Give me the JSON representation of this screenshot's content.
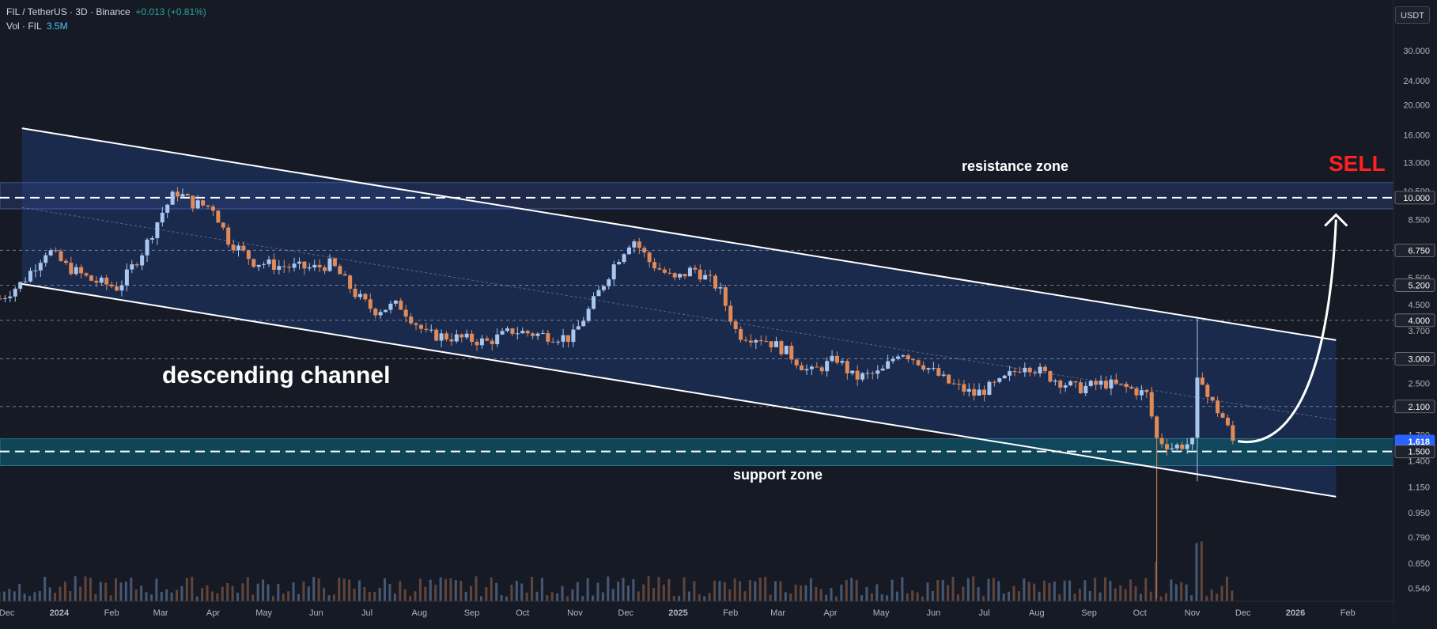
{
  "header": {
    "symbol_line": "FIL / TetherUS · 3D · Binance",
    "change": "+0.013 (+0.81%)",
    "volume_label": "Vol · FIL",
    "volume_value": "3.5M"
  },
  "currency_badge": "USDT",
  "colors": {
    "background": "#161a25",
    "up_candle": "#a9c6ef",
    "down_candle": "#e08a5a",
    "channel_fill": "#1b2e55",
    "support_fill": "#0f4a5e",
    "text": "#d1d4dc",
    "sell": "#ff2020"
  },
  "chart_data": {
    "type": "candlestick",
    "title": "FIL / TetherUS · 3D · Binance",
    "y_scale": "log",
    "ylim": [
      0.5,
      36
    ],
    "y_ticks": [
      "30.000",
      "24.000",
      "20.000",
      "16.000",
      "13.000",
      "10.500",
      "8.500",
      "6.750",
      "5.500",
      "4.500",
      "3.700",
      "3.000",
      "2.500",
      "2.100",
      "1.700",
      "1.400",
      "1.150",
      "0.950",
      "0.790",
      "0.650",
      "0.540"
    ],
    "x_ticks": [
      "Dec",
      "2024",
      "Feb",
      "Mar",
      "Apr",
      "May",
      "Jun",
      "Jul",
      "Aug",
      "Sep",
      "Oct",
      "Nov",
      "Dec",
      "2025",
      "Feb",
      "Mar",
      "Apr",
      "May",
      "Jun",
      "Jul",
      "Aug",
      "Sep",
      "Oct",
      "Nov",
      "Dec",
      "2026",
      "Feb"
    ],
    "x_range": [
      "2023-11-27",
      "2026-02-28"
    ],
    "price_labels": [
      {
        "value": 10.0,
        "text": "10.000",
        "style": "dark"
      },
      {
        "value": 6.75,
        "text": "6.750",
        "style": "dark"
      },
      {
        "value": 5.2,
        "text": "5.200",
        "style": "dark"
      },
      {
        "value": 4.0,
        "text": "4.000",
        "style": "dark"
      },
      {
        "value": 3.0,
        "text": "3.000",
        "style": "dark"
      },
      {
        "value": 2.1,
        "text": "2.100",
        "style": "dark"
      },
      {
        "value": 1.618,
        "text": "1.618",
        "style": "current"
      },
      {
        "value": 1.5,
        "text": "1.500",
        "style": "dark"
      }
    ],
    "close_points": [
      [
        "2023-11-27",
        4.7
      ],
      [
        "2023-12-10",
        5.3
      ],
      [
        "2023-12-25",
        6.8
      ],
      [
        "2024-01-05",
        6.0
      ],
      [
        "2024-01-20",
        5.4
      ],
      [
        "2024-02-05",
        5.1
      ],
      [
        "2024-02-20",
        6.8
      ],
      [
        "2024-03-01",
        8.8
      ],
      [
        "2024-03-10",
        10.5
      ],
      [
        "2024-03-20",
        9.6
      ],
      [
        "2024-04-01",
        9.3
      ],
      [
        "2024-04-10",
        7.3
      ],
      [
        "2024-04-25",
        6.2
      ],
      [
        "2024-05-10",
        6.0
      ],
      [
        "2024-05-30",
        5.9
      ],
      [
        "2024-06-10",
        6.1
      ],
      [
        "2024-06-25",
        4.8
      ],
      [
        "2024-07-05",
        4.3
      ],
      [
        "2024-07-20",
        4.5
      ],
      [
        "2024-08-05",
        3.6
      ],
      [
        "2024-08-25",
        3.5
      ],
      [
        "2024-09-10",
        3.4
      ],
      [
        "2024-09-25",
        3.7
      ],
      [
        "2024-10-10",
        3.6
      ],
      [
        "2024-10-30",
        3.5
      ],
      [
        "2024-11-10",
        4.4
      ],
      [
        "2024-11-25",
        6.2
      ],
      [
        "2024-12-05",
        7.4
      ],
      [
        "2024-12-15",
        6.2
      ],
      [
        "2024-12-30",
        5.4
      ],
      [
        "2025-01-10",
        5.9
      ],
      [
        "2025-01-25",
        5.1
      ],
      [
        "2025-02-05",
        3.6
      ],
      [
        "2025-02-20",
        3.5
      ],
      [
        "2025-03-05",
        3.2
      ],
      [
        "2025-03-20",
        2.7
      ],
      [
        "2025-04-05",
        3.0
      ],
      [
        "2025-04-15",
        2.6
      ],
      [
        "2025-05-01",
        2.7
      ],
      [
        "2025-05-12",
        3.2
      ],
      [
        "2025-05-25",
        2.9
      ],
      [
        "2025-06-10",
        2.5
      ],
      [
        "2025-06-25",
        2.3
      ],
      [
        "2025-07-10",
        2.5
      ],
      [
        "2025-07-25",
        2.9
      ],
      [
        "2025-08-10",
        2.6
      ],
      [
        "2025-08-25",
        2.4
      ],
      [
        "2025-09-10",
        2.5
      ],
      [
        "2025-09-25",
        2.4
      ],
      [
        "2025-10-05",
        2.3
      ],
      [
        "2025-10-11",
        1.65
      ],
      [
        "2025-10-20",
        1.55
      ],
      [
        "2025-11-01",
        1.6
      ],
      [
        "2025-11-05",
        2.9
      ],
      [
        "2025-11-09",
        2.3
      ],
      [
        "2025-11-20",
        1.9
      ],
      [
        "2025-11-25",
        1.62
      ]
    ],
    "volume_spikes": [
      [
        "2025-10-11",
        "down"
      ],
      [
        "2025-11-05",
        "up"
      ]
    ],
    "annotations": [
      {
        "type": "text",
        "text": "descending channel"
      },
      {
        "type": "text",
        "text": "resistance zone"
      },
      {
        "type": "text",
        "text": "support zone"
      },
      {
        "type": "text",
        "text": "SELL"
      }
    ],
    "channel_upper": [
      [
        "2023-12-10",
        16.8
      ],
      [
        "2026-01-25",
        3.45
      ]
    ],
    "channel_lower": [
      [
        "2023-12-10",
        5.25
      ],
      [
        "2026-01-25",
        1.07
      ]
    ],
    "channel_mid": [
      [
        "2023-12-10",
        9.3
      ],
      [
        "2026-01-25",
        1.9
      ]
    ],
    "resistance_zone": [
      9.2,
      11.2
    ],
    "resistance_dashed": 10.0,
    "support_zone": [
      1.35,
      1.65
    ],
    "support_dashed": 1.5,
    "horizontal_dotted": [
      6.75,
      5.2,
      4.0,
      3.0,
      2.1
    ],
    "projection": {
      "from": [
        "2025-11-28",
        1.62
      ],
      "to": [
        "2026-01-25",
        8.8
      ]
    },
    "grid": false,
    "legend": "none"
  }
}
